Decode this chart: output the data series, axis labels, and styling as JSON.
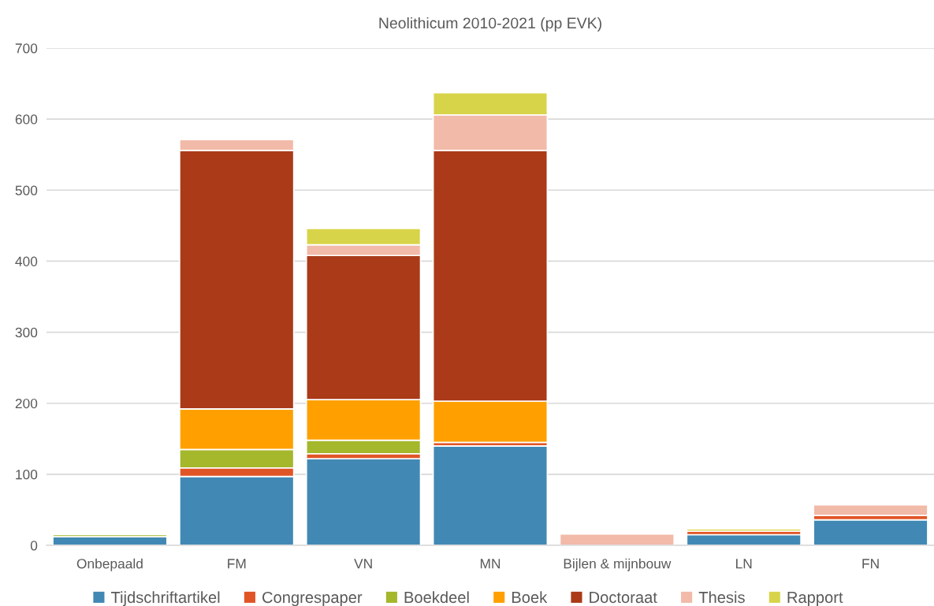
{
  "chart_data": {
    "type": "bar",
    "title": "Neolithicum 2010-2021 (pp EVK)",
    "stacked": true,
    "categories": [
      "Onbepaald",
      "FM",
      "VN",
      "MN",
      "Bijlen & mijnbouw",
      "LN",
      "FN"
    ],
    "series": [
      {
        "name": "Tijdschriftartikel",
        "color": "#4189b4",
        "values": [
          12,
          97,
          122,
          140,
          null,
          15,
          36
        ]
      },
      {
        "name": "Congrespaper",
        "color": "#e05526",
        "values": [
          null,
          12,
          7,
          5,
          null,
          5,
          6
        ]
      },
      {
        "name": "Boekdeel",
        "color": "#a5b72b",
        "values": [
          3,
          26,
          19,
          null,
          null,
          null,
          null
        ]
      },
      {
        "name": "Boek",
        "color": "#ffa000",
        "values": [
          null,
          57,
          57,
          58,
          null,
          null,
          null
        ]
      },
      {
        "name": "Doctoraat",
        "color": "#aa3a18",
        "values": [
          null,
          364,
          203,
          353,
          null,
          null,
          null
        ]
      },
      {
        "name": "Thesis",
        "color": "#f2baa8",
        "values": [
          null,
          15,
          15,
          50,
          16,
          null,
          15
        ]
      },
      {
        "name": "Rapport",
        "color": "#d8d44a",
        "values": [
          null,
          null,
          23,
          31,
          null,
          3,
          null
        ]
      }
    ],
    "ylim": [
      0,
      700
    ],
    "yticks": [
      0,
      100,
      200,
      300,
      400,
      500,
      600,
      700
    ],
    "grid": "y",
    "legend": "bottom"
  }
}
